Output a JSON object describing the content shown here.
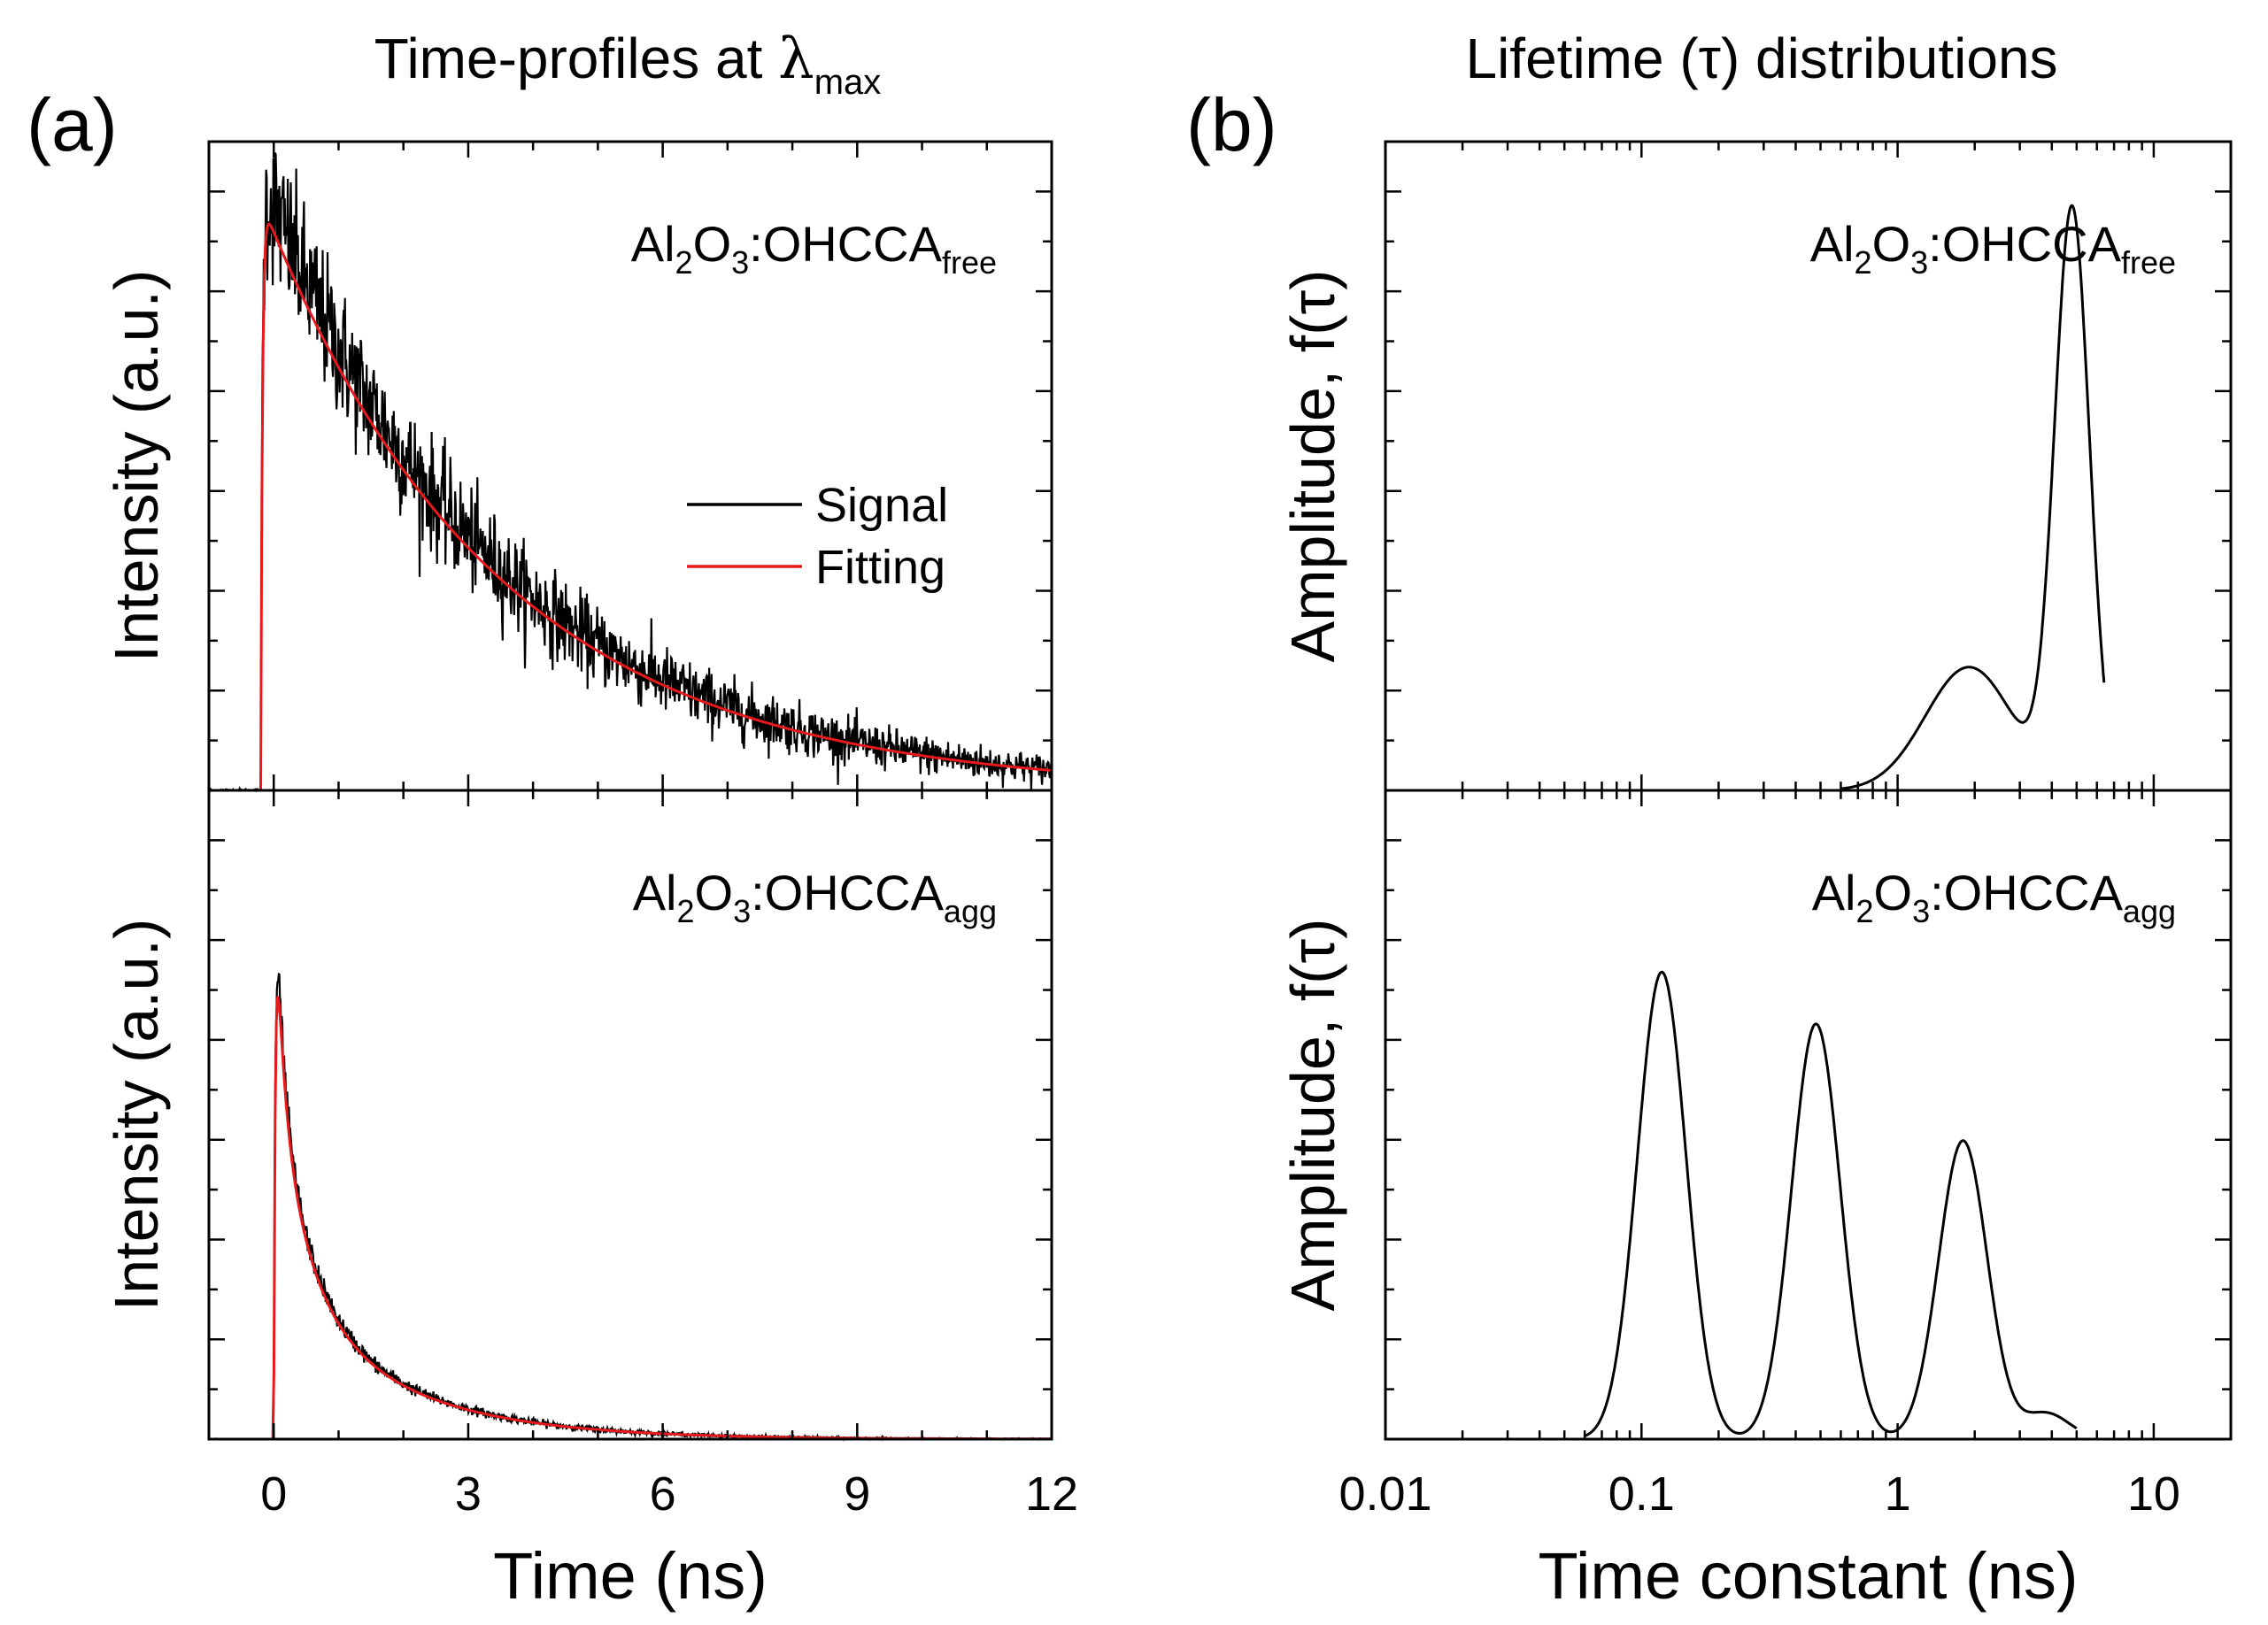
{
  "figure": {
    "panel_a_letter": "(a)",
    "panel_b_letter": "(b)",
    "panel_a_title": {
      "main": "Time-profiles at ",
      "symbol": "λ",
      "sub": "max"
    },
    "panel_b_title": "Lifetime (τ) distributions"
  },
  "chart_data": [
    {
      "id": "a-top",
      "type": "line",
      "panel": "(a)",
      "ylabel": "Intensity (a.u.)",
      "xlim": [
        -1,
        12
      ],
      "x_ticks": [
        0,
        3,
        6,
        9,
        12
      ],
      "annotation": {
        "main": "Al",
        "sub1": "2",
        "mid": "O",
        "sub2": "3",
        "tail": ":OHCCA",
        "sub3": "free"
      },
      "legend": {
        "position": "middle-right",
        "entries": [
          "Signal",
          "Fitting"
        ]
      },
      "series": [
        {
          "name": "Signal",
          "color": "#000000",
          "noise": 0.045,
          "model": {
            "kind": "exp_decay",
            "rise": -0.2,
            "peak": 0.95,
            "tau": [
              3.6
            ],
            "amp": [
              1.0
            ]
          }
        },
        {
          "name": "Fitting",
          "color": "#e8191c",
          "model": {
            "kind": "exp_decay",
            "rise": -0.2,
            "peak": 0.91,
            "tau": [
              3.6
            ],
            "amp": [
              1.0
            ]
          }
        }
      ]
    },
    {
      "id": "a-bottom",
      "type": "line",
      "panel": "(a)",
      "xlabel": "Time (ns)",
      "ylabel": "Intensity (a.u.)",
      "xlim": [
        -1,
        12
      ],
      "x_ticks": [
        0,
        3,
        6,
        9,
        12
      ],
      "x_tick_labels": [
        "0",
        "3",
        "6",
        "9",
        "12"
      ],
      "annotation": {
        "main": "Al",
        "sub1": "2",
        "mid": "O",
        "sub2": "3",
        "tail": ":OHCCA",
        "sub3": "agg"
      },
      "series": [
        {
          "name": "Signal",
          "color": "#000000",
          "noise": 0.012,
          "model": {
            "kind": "exp_decay",
            "rise": 0.0,
            "peak": 0.97,
            "tau": [
              0.12,
              0.48,
              1.8
            ],
            "amp": [
              0.38,
              0.37,
              0.25
            ]
          }
        },
        {
          "name": "Fitting",
          "color": "#e8191c",
          "model": {
            "kind": "exp_decay",
            "rise": 0.0,
            "peak": 0.94,
            "tau": [
              0.12,
              0.48,
              1.8
            ],
            "amp": [
              0.38,
              0.37,
              0.25
            ]
          }
        }
      ]
    },
    {
      "id": "b-top",
      "type": "line",
      "panel": "(b)",
      "xscale": "log",
      "ylabel": "Amplitude,  f(τ)",
      "xlim": [
        0.01,
        20
      ],
      "x_ticks": [
        0.01,
        0.1,
        1,
        10
      ],
      "annotation": {
        "main": "Al",
        "sub1": "2",
        "mid": "O",
        "sub2": "3",
        "tail": ":OHCCA",
        "sub3": "free"
      },
      "series": [
        {
          "name": "f(τ)",
          "color": "#000000",
          "peaks": [
            {
              "tau": 1.9,
              "height": 0.19,
              "width": 0.17
            },
            {
              "tau": 4.8,
              "height": 0.89,
              "width": 0.068
            }
          ],
          "range": [
            0.6,
            6.4
          ]
        }
      ]
    },
    {
      "id": "b-bottom",
      "type": "line",
      "panel": "(b)",
      "xscale": "log",
      "xlabel": "Time constant (ns)",
      "ylabel": "Amplitude,  f(τ)",
      "xlim": [
        0.01,
        20
      ],
      "x_ticks": [
        0.01,
        0.1,
        1,
        10
      ],
      "x_tick_labels": [
        "0.01",
        "0.1",
        "1",
        "10"
      ],
      "annotation": {
        "main": "Al",
        "sub1": "2",
        "mid": "O",
        "sub2": "3",
        "tail": ":OHCCA",
        "sub3": "agg"
      },
      "series": [
        {
          "name": "f(τ)",
          "color": "#000000",
          "peaks": [
            {
              "tau": 0.12,
              "height": 0.72,
              "width": 0.095
            },
            {
              "tau": 0.48,
              "height": 0.64,
              "width": 0.095
            },
            {
              "tau": 1.8,
              "height": 0.46,
              "width": 0.095
            },
            {
              "tau": 3.8,
              "height": 0.04,
              "width": 0.09
            }
          ],
          "range": [
            0.06,
            5.0
          ]
        }
      ]
    }
  ]
}
